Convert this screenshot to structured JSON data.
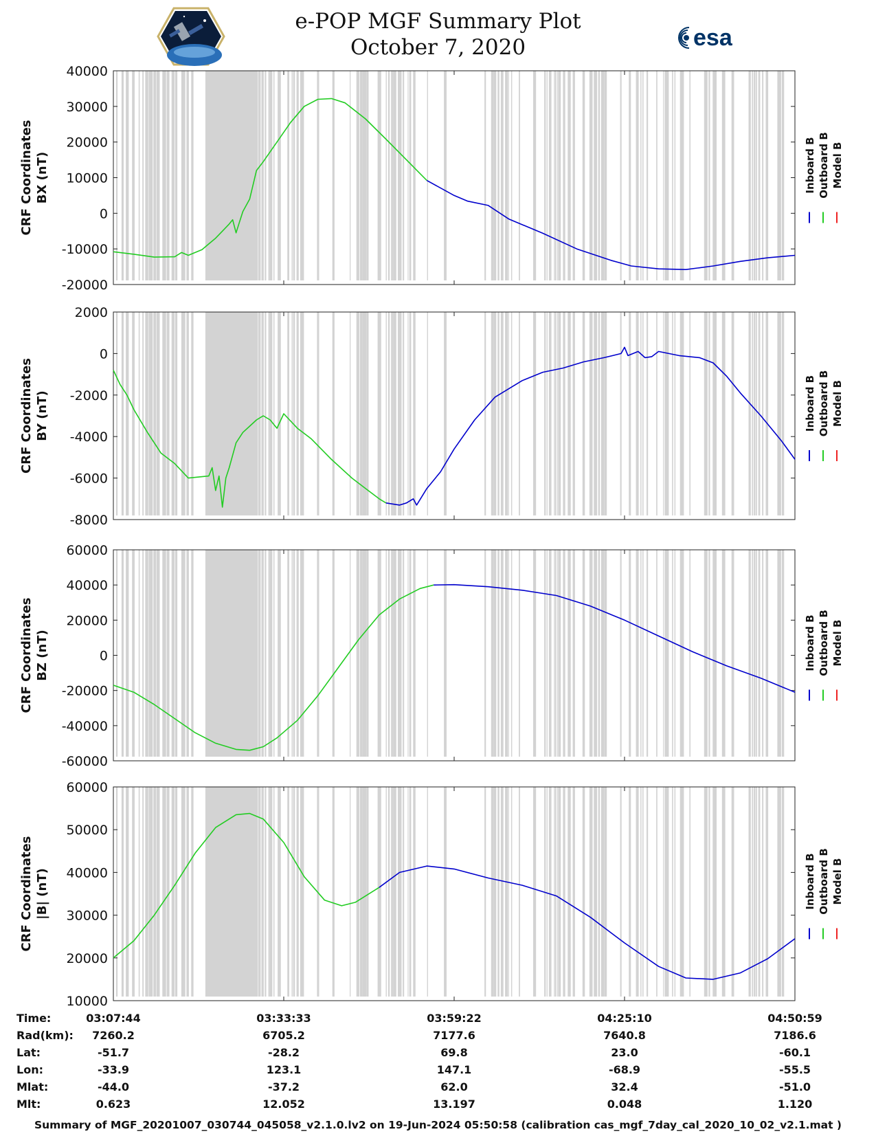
{
  "title": {
    "line1": "e-POP MGF Summary Plot",
    "line2": "October 7, 2020"
  },
  "logos": {
    "left": "cassiope-mission-patch",
    "right_text": "esa"
  },
  "colors": {
    "inboard": "#0000cc",
    "outboard": "#22cc22",
    "model": "#ee2222",
    "data_gap_shade": "#d3d3d3"
  },
  "legend": [
    "Inboard B",
    "Outboard B",
    "Model B"
  ],
  "chart_data": [
    {
      "type": "line",
      "ylabel": [
        "CRF Coordinates",
        "BX (nT)"
      ],
      "ylim": [
        -20000,
        40000
      ],
      "yticks": [
        40000,
        30000,
        20000,
        10000,
        0,
        -10000,
        -20000
      ],
      "series": [
        {
          "name": "Outboard B",
          "points": [
            [
              0,
              -10800
            ],
            [
              0.03,
              -11500
            ],
            [
              0.06,
              -12300
            ],
            [
              0.09,
              -12200
            ],
            [
              0.1,
              -11000
            ],
            [
              0.11,
              -11800
            ],
            [
              0.13,
              -10200
            ],
            [
              0.14,
              -8600
            ],
            [
              0.15,
              -7000
            ],
            [
              0.16,
              -5000
            ],
            [
              0.17,
              -3000
            ],
            [
              0.175,
              -1800
            ],
            [
              0.18,
              -5500
            ],
            [
              0.185,
              -2500
            ],
            [
              0.19,
              500
            ],
            [
              0.2,
              4000
            ],
            [
              0.21,
              12000
            ],
            [
              0.22,
              14500
            ],
            [
              0.24,
              20000
            ],
            [
              0.26,
              25500
            ],
            [
              0.28,
              30000
            ],
            [
              0.3,
              32000
            ],
            [
              0.32,
              32200
            ],
            [
              0.34,
              31000
            ],
            [
              0.37,
              26500
            ],
            [
              0.4,
              20800
            ],
            [
              0.43,
              15000
            ],
            [
              0.46,
              9200
            ]
          ]
        },
        {
          "name": "Inboard B",
          "points": [
            [
              0.46,
              9200
            ],
            [
              0.5,
              5000
            ],
            [
              0.52,
              3400
            ],
            [
              0.55,
              2200
            ],
            [
              0.58,
              -1600
            ],
            [
              0.63,
              -5600
            ],
            [
              0.68,
              -10000
            ],
            [
              0.73,
              -13200
            ],
            [
              0.76,
              -14800
            ],
            [
              0.8,
              -15600
            ],
            [
              0.84,
              -15800
            ],
            [
              0.88,
              -14800
            ],
            [
              0.92,
              -13500
            ],
            [
              0.96,
              -12500
            ],
            [
              1.0,
              -11800
            ]
          ]
        }
      ]
    },
    {
      "type": "line",
      "ylabel": [
        "CRF Coordinates",
        "BY (nT)"
      ],
      "ylim": [
        -8000,
        2000
      ],
      "yticks": [
        2000,
        0,
        -2000,
        -4000,
        -6000,
        -8000
      ],
      "series": [
        {
          "name": "Outboard B",
          "points": [
            [
              0,
              -800
            ],
            [
              0.01,
              -1500
            ],
            [
              0.02,
              -2000
            ],
            [
              0.03,
              -2700
            ],
            [
              0.05,
              -3800
            ],
            [
              0.07,
              -4800
            ],
            [
              0.09,
              -5300
            ],
            [
              0.11,
              -6000
            ],
            [
              0.14,
              -5900
            ],
            [
              0.145,
              -5500
            ],
            [
              0.15,
              -6600
            ],
            [
              0.155,
              -5900
            ],
            [
              0.16,
              -7400
            ],
            [
              0.165,
              -6000
            ],
            [
              0.17,
              -5500
            ],
            [
              0.18,
              -4300
            ],
            [
              0.19,
              -3800
            ],
            [
              0.2,
              -3500
            ],
            [
              0.21,
              -3200
            ],
            [
              0.22,
              -3000
            ],
            [
              0.23,
              -3200
            ],
            [
              0.24,
              -3600
            ],
            [
              0.25,
              -2900
            ],
            [
              0.27,
              -3600
            ],
            [
              0.29,
              -4100
            ],
            [
              0.32,
              -5100
            ],
            [
              0.35,
              -6000
            ],
            [
              0.37,
              -6500
            ],
            [
              0.39,
              -7000
            ],
            [
              0.4,
              -7200
            ]
          ]
        },
        {
          "name": "Inboard B",
          "points": [
            [
              0.4,
              -7200
            ],
            [
              0.42,
              -7300
            ],
            [
              0.43,
              -7200
            ],
            [
              0.44,
              -7000
            ],
            [
              0.445,
              -7300
            ],
            [
              0.46,
              -6500
            ],
            [
              0.48,
              -5700
            ],
            [
              0.5,
              -4600
            ],
            [
              0.53,
              -3200
            ],
            [
              0.56,
              -2100
            ],
            [
              0.6,
              -1300
            ],
            [
              0.63,
              -900
            ],
            [
              0.66,
              -700
            ],
            [
              0.69,
              -400
            ],
            [
              0.72,
              -200
            ],
            [
              0.745,
              0
            ],
            [
              0.75,
              300
            ],
            [
              0.755,
              -100
            ],
            [
              0.77,
              100
            ],
            [
              0.78,
              -200
            ],
            [
              0.79,
              -150
            ],
            [
              0.8,
              100
            ],
            [
              0.83,
              -100
            ],
            [
              0.86,
              -200
            ],
            [
              0.88,
              -450
            ],
            [
              0.9,
              -1100
            ],
            [
              0.92,
              -1900
            ],
            [
              0.95,
              -3000
            ],
            [
              0.98,
              -4200
            ],
            [
              1.0,
              -5100
            ]
          ]
        }
      ]
    },
    {
      "type": "line",
      "ylabel": [
        "CRF Coordinates",
        "BZ (nT)"
      ],
      "ylim": [
        -60000,
        60000
      ],
      "yticks": [
        60000,
        40000,
        20000,
        0,
        -20000,
        -40000,
        -60000
      ],
      "series": [
        {
          "name": "Outboard B",
          "points": [
            [
              0,
              -17000
            ],
            [
              0.03,
              -21000
            ],
            [
              0.06,
              -28000
            ],
            [
              0.09,
              -36000
            ],
            [
              0.12,
              -44000
            ],
            [
              0.15,
              -50000
            ],
            [
              0.18,
              -53500
            ],
            [
              0.2,
              -54000
            ],
            [
              0.22,
              -52000
            ],
            [
              0.24,
              -47000
            ],
            [
              0.27,
              -37000
            ],
            [
              0.3,
              -23000
            ],
            [
              0.33,
              -7000
            ],
            [
              0.36,
              9000
            ],
            [
              0.39,
              23000
            ],
            [
              0.42,
              32000
            ],
            [
              0.45,
              38000
            ],
            [
              0.47,
              40000
            ]
          ]
        },
        {
          "name": "Inboard B",
          "points": [
            [
              0.47,
              40000
            ],
            [
              0.5,
              40200
            ],
            [
              0.55,
              39000
            ],
            [
              0.6,
              37000
            ],
            [
              0.65,
              34000
            ],
            [
              0.7,
              28000
            ],
            [
              0.75,
              20000
            ],
            [
              0.8,
              11000
            ],
            [
              0.85,
              2000
            ],
            [
              0.9,
              -6000
            ],
            [
              0.95,
              -13000
            ],
            [
              1.0,
              -21000
            ]
          ]
        }
      ]
    },
    {
      "type": "line",
      "ylabel": [
        "CRF Coordinates",
        "|B| (nT)"
      ],
      "ylim": [
        10000,
        60000
      ],
      "yticks": [
        60000,
        50000,
        40000,
        30000,
        20000,
        10000
      ],
      "series": [
        {
          "name": "Outboard B",
          "points": [
            [
              0,
              20000
            ],
            [
              0.03,
              24000
            ],
            [
              0.06,
              30000
            ],
            [
              0.09,
              37000
            ],
            [
              0.12,
              44500
            ],
            [
              0.15,
              50500
            ],
            [
              0.18,
              53500
            ],
            [
              0.2,
              53800
            ],
            [
              0.22,
              52500
            ],
            [
              0.25,
              47000
            ],
            [
              0.28,
              39000
            ],
            [
              0.31,
              33500
            ],
            [
              0.335,
              32200
            ],
            [
              0.355,
              33000
            ],
            [
              0.39,
              36500
            ]
          ]
        },
        {
          "name": "Inboard B",
          "points": [
            [
              0.39,
              36500
            ],
            [
              0.42,
              40000
            ],
            [
              0.46,
              41500
            ],
            [
              0.5,
              40800
            ],
            [
              0.55,
              38700
            ],
            [
              0.6,
              37000
            ],
            [
              0.65,
              34500
            ],
            [
              0.7,
              29500
            ],
            [
              0.75,
              23500
            ],
            [
              0.8,
              18000
            ],
            [
              0.84,
              15300
            ],
            [
              0.88,
              15000
            ],
            [
              0.92,
              16500
            ],
            [
              0.96,
              19800
            ],
            [
              1.0,
              24500
            ]
          ]
        }
      ]
    }
  ],
  "time_table": {
    "row_labels": [
      "Time:",
      "Rad(km):",
      "Lat:",
      "Lon:",
      "Mlat:",
      "Mlt:"
    ],
    "columns": [
      [
        "03:07:44",
        "7260.2",
        "-51.7",
        "-33.9",
        "-44.0",
        "0.623"
      ],
      [
        "03:33:33",
        "6705.2",
        "-28.2",
        "123.1",
        "-37.2",
        "12.052"
      ],
      [
        "03:59:22",
        "7177.6",
        "69.8",
        "147.1",
        "62.0",
        "13.197"
      ],
      [
        "04:25:10",
        "7640.8",
        "23.0",
        "-68.9",
        "32.4",
        "0.048"
      ],
      [
        "04:50:59",
        "7186.6",
        "-60.1",
        "-55.5",
        "-51.0",
        "1.120"
      ]
    ]
  },
  "footer": "Summary of MGF_20201007_030744_045058_v2.1.0.lv2 on 19-Jun-2024 05:50:58 (calibration cas_mgf_7day_cal_2020_10_02_v2.1.mat )"
}
